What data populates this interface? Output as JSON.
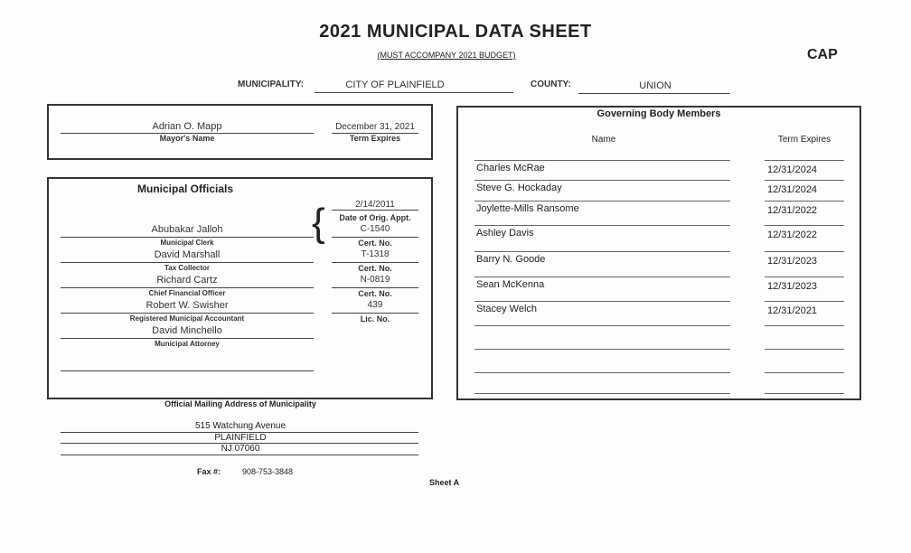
{
  "header": {
    "title": "2021 MUNICIPAL DATA SHEET",
    "subtitle": "(MUST ACCOMPANY 2021 BUDGET)",
    "cap": "CAP",
    "municipality_label": "MUNICIPALITY:",
    "municipality": "CITY OF PLAINFIELD",
    "county_label": "COUNTY:",
    "county": "UNION"
  },
  "mayor": {
    "name": "Adrian O. Mapp",
    "name_label": "Mayor's Name",
    "term": "December 31, 2021",
    "term_label": "Term Expires"
  },
  "officials": {
    "title": "Municipal Officials",
    "date": "2/14/2011",
    "date_label": "Date of Orig. Appt.",
    "rows": [
      {
        "name": "Abubakar Jalloh",
        "role": "Municipal Clerk",
        "value": "C-1540",
        "value_label": "Cert. No."
      },
      {
        "name": "David Marshall",
        "role": "Tax Collector",
        "value": "T-1318",
        "value_label": "Cert. No."
      },
      {
        "name": "Richard Cartz",
        "role": "Chief Financial Officer",
        "value": "N-0819",
        "value_label": "Cert. No."
      },
      {
        "name": "Robert W. Swisher",
        "role": "Registered Municipal Accountant",
        "value": "439",
        "value_label": "Lic. No."
      },
      {
        "name": "David Minchello",
        "role": "Municipal Attorney"
      }
    ]
  },
  "governing": {
    "title": "Governing Body Members",
    "name_header": "Name",
    "term_header": "Term Expires",
    "members": [
      {
        "name": "Charles McRae",
        "term": "12/31/2024"
      },
      {
        "name": "Steve G. Hockaday",
        "term": "12/31/2024"
      },
      {
        "name": "Joylette-Mills Ransome",
        "term": "12/31/2022"
      },
      {
        "name": "Ashley Davis",
        "term": "12/31/2022"
      },
      {
        "name": "Barry N. Goode",
        "term": "12/31/2023"
      },
      {
        "name": "Sean McKenna",
        "term": "12/31/2023"
      },
      {
        "name": "Stacey Welch",
        "term": "12/31/2021"
      }
    ]
  },
  "mailing": {
    "title": "Official Mailing Address of Municipality",
    "line1": "515 Watchung Avenue",
    "line2": "PLAINFIELD",
    "line3": "NJ 07060",
    "fax_label": "Fax #:",
    "fax": "908-753-3848"
  },
  "footer": {
    "sheet": "Sheet A"
  }
}
